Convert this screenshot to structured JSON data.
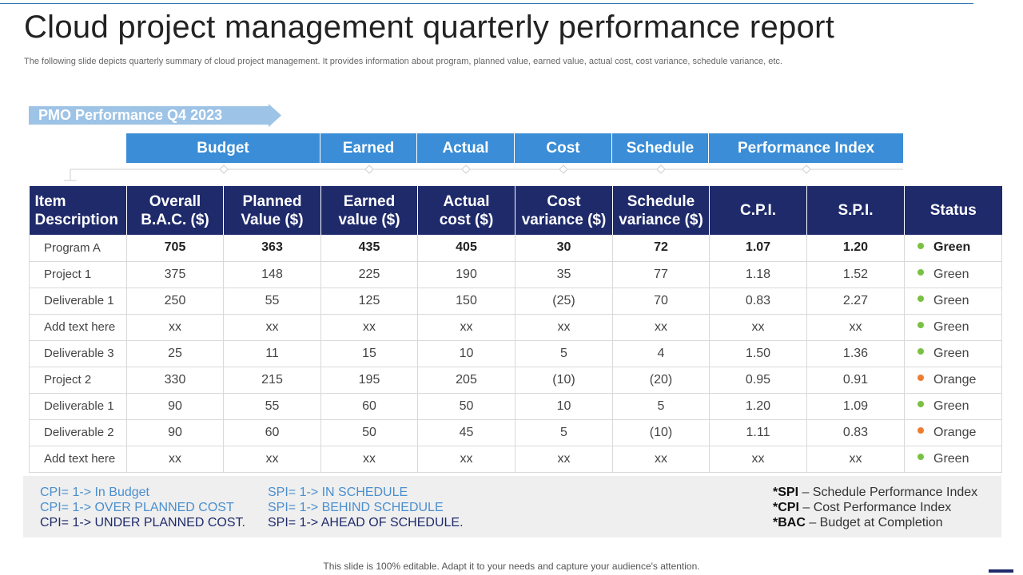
{
  "title": "Cloud project management quarterly performance report",
  "subtitle": "The following slide depicts quarterly summary of cloud project management. It provides information about program, planned value, earned value, actual cost, cost variance, schedule variance, etc.",
  "pmo_label": "PMO Performance Q4 2023",
  "groups": [
    "Budget",
    "Earned",
    "Actual",
    "Cost",
    "Schedule",
    "Performance Index"
  ],
  "headers": {
    "item": [
      "Item",
      "Description"
    ],
    "bac": [
      "Overall",
      "B.A.C. ($)"
    ],
    "pv": [
      "Planned",
      "Value ($)"
    ],
    "ev": [
      "Earned",
      "value ($)"
    ],
    "ac": [
      "Actual",
      "cost ($)"
    ],
    "cv": [
      "Cost",
      "variance ($)"
    ],
    "sv": [
      "Schedule",
      "variance ($)"
    ],
    "cpi": "C.P.I.",
    "spi": "S.P.I.",
    "status": "Status"
  },
  "rows": [
    {
      "item": "Program A",
      "bac": "705",
      "pv": "363",
      "ev": "435",
      "ac": "405",
      "cv": "30",
      "sv": "72",
      "cpi": "1.07",
      "spi": "1.20",
      "status": "Green"
    },
    {
      "item": "Project 1",
      "bac": "375",
      "pv": "148",
      "ev": "225",
      "ac": "190",
      "cv": "35",
      "sv": "77",
      "cpi": "1.18",
      "spi": "1.52",
      "status": "Green"
    },
    {
      "item": "Deliverable 1",
      "bac": "250",
      "pv": "55",
      "ev": "125",
      "ac": "150",
      "cv": "(25)",
      "sv": "70",
      "cpi": "0.83",
      "spi": "2.27",
      "status": "Green"
    },
    {
      "item": "Add text here",
      "bac": "xx",
      "pv": "xx",
      "ev": "xx",
      "ac": "xx",
      "cv": "xx",
      "sv": "xx",
      "cpi": "xx",
      "spi": "xx",
      "status": "Green"
    },
    {
      "item": "Deliverable 3",
      "bac": "25",
      "pv": "11",
      "ev": "15",
      "ac": "10",
      "cv": "5",
      "sv": "4",
      "cpi": "1.50",
      "spi": "1.36",
      "status": "Green"
    },
    {
      "item": "Project 2",
      "bac": "330",
      "pv": "215",
      "ev": "195",
      "ac": "205",
      "cv": "(10)",
      "sv": "(20)",
      "cpi": "0.95",
      "spi": "0.91",
      "status": "Orange"
    },
    {
      "item": "Deliverable 1",
      "bac": "90",
      "pv": "55",
      "ev": "60",
      "ac": "50",
      "cv": "10",
      "sv": "5",
      "cpi": "1.20",
      "spi": "1.09",
      "status": "Green"
    },
    {
      "item": "Deliverable 2",
      "bac": "90",
      "pv": "60",
      "ev": "50",
      "ac": "45",
      "cv": "5",
      "sv": "(10)",
      "cpi": "1.11",
      "spi": "0.83",
      "status": "Orange"
    },
    {
      "item": "Add text here",
      "bac": "xx",
      "pv": "xx",
      "ev": "xx",
      "ac": "xx",
      "cv": "xx",
      "sv": "xx",
      "cpi": "xx",
      "spi": "xx",
      "status": "Green"
    }
  ],
  "legend": {
    "cpi": [
      "CPI= 1-> In Budget",
      "CPI= 1-> OVER PLANNED COST",
      "CPI= 1-> UNDER PLANNED COST."
    ],
    "spi": [
      "SPI= 1-> IN SCHEDULE",
      "SPI= 1-> BEHIND SCHEDULE",
      "SPI= 1-> AHEAD OF SCHEDULE."
    ],
    "glossary": [
      {
        "abbr": "*SPI",
        "text": " – Schedule Performance Index"
      },
      {
        "abbr": "*CPI",
        "text": " – Cost Performance Index"
      },
      {
        "abbr": "*BAC",
        "text": " – Budget at Completion"
      }
    ]
  },
  "footer": "This slide is 100% editable. Adapt it to your needs and capture your audience's attention.",
  "colors": {
    "header_navy": "#1f2a6b",
    "group_blue": "#3a8dd6",
    "arrow_blue": "#9dc3e6",
    "positive": "#1f9e3a",
    "negative": "#d0141a",
    "status_green": "#7ac143",
    "status_orange": "#ed7d31"
  }
}
